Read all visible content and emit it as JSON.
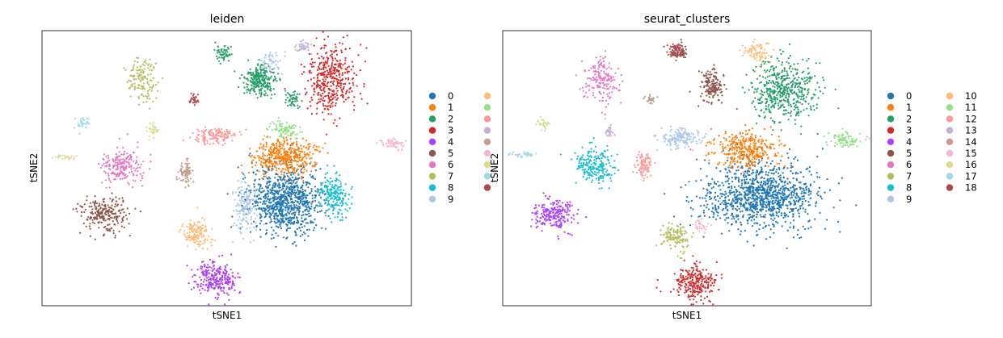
{
  "chart_data": [
    {
      "type": "scatter",
      "title": "leiden",
      "xlabel": "tSNE1",
      "ylabel": "tSNE2",
      "grid": false,
      "legend_position": "right (partially clipped by neighbouring panel)",
      "xticks": [],
      "yticks": [],
      "legend": [
        {
          "label": "0",
          "color": "#1f77b4"
        },
        {
          "label": "1",
          "color": "#ff7f0e"
        },
        {
          "label": "2",
          "color": "#279e68"
        },
        {
          "label": "3",
          "color": "#d62728"
        },
        {
          "label": "4",
          "color": "#aa40fc"
        },
        {
          "label": "5",
          "color": "#8c564b"
        },
        {
          "label": "6",
          "color": "#e377c2"
        },
        {
          "label": "7",
          "color": "#b5bd61"
        },
        {
          "label": "8",
          "color": "#17becf"
        },
        {
          "label": "9",
          "color": "#aec7e8"
        },
        {
          "label": "",
          "color": "#ffbb78"
        },
        {
          "label": "",
          "color": "#98df8a"
        },
        {
          "label": "",
          "color": "#ff9896"
        },
        {
          "label": "",
          "color": "#c5b0d5"
        },
        {
          "label": "",
          "color": "#c49c94"
        },
        {
          "label": "",
          "color": "#f7b6d2"
        },
        {
          "label": "",
          "color": "#dbdb8d"
        },
        {
          "label": "",
          "color": "#9edae5"
        },
        {
          "label": "",
          "color": "#ad494a"
        }
      ],
      "clusters": [
        {
          "color": "#1f77b4",
          "center": [
            0.66,
            0.62
          ],
          "radius": [
            0.09,
            0.11
          ],
          "n": 900
        },
        {
          "color": "#ff7f0e",
          "center": [
            0.66,
            0.46
          ],
          "radius": [
            0.08,
            0.06
          ],
          "n": 450
        },
        {
          "color": "#279e68",
          "center": [
            0.59,
            0.18
          ],
          "radius": [
            0.04,
            0.05
          ],
          "n": 260
        },
        {
          "color": "#279e68",
          "center": [
            0.49,
            0.08
          ],
          "radius": [
            0.02,
            0.025
          ],
          "n": 60
        },
        {
          "color": "#279e68",
          "center": [
            0.68,
            0.25
          ],
          "radius": [
            0.02,
            0.03
          ],
          "n": 50
        },
        {
          "color": "#d62728",
          "center": [
            0.78,
            0.18
          ],
          "radius": [
            0.06,
            0.11
          ],
          "n": 400
        },
        {
          "color": "#aa40fc",
          "center": [
            0.47,
            0.9
          ],
          "radius": [
            0.05,
            0.06
          ],
          "n": 260
        },
        {
          "color": "#8c564b",
          "center": [
            0.17,
            0.67
          ],
          "radius": [
            0.06,
            0.06
          ],
          "n": 230
        },
        {
          "color": "#e377c2",
          "center": [
            0.22,
            0.49
          ],
          "radius": [
            0.05,
            0.06
          ],
          "n": 200
        },
        {
          "color": "#b5bd61",
          "center": [
            0.27,
            0.18
          ],
          "radius": [
            0.035,
            0.07
          ],
          "n": 140
        },
        {
          "color": "#17becf",
          "center": [
            0.79,
            0.6
          ],
          "radius": [
            0.04,
            0.07
          ],
          "n": 200
        },
        {
          "color": "#aec7e8",
          "center": [
            0.55,
            0.64
          ],
          "radius": [
            0.03,
            0.08
          ],
          "n": 150
        },
        {
          "color": "#aec7e8",
          "center": [
            0.62,
            0.11
          ],
          "radius": [
            0.025,
            0.04
          ],
          "n": 50
        },
        {
          "color": "#ffbb78",
          "center": [
            0.42,
            0.74
          ],
          "radius": [
            0.035,
            0.045
          ],
          "n": 150
        },
        {
          "color": "#98df8a",
          "center": [
            0.66,
            0.36
          ],
          "radius": [
            0.04,
            0.025
          ],
          "n": 100
        },
        {
          "color": "#ff9896",
          "center": [
            0.47,
            0.38
          ],
          "radius": [
            0.06,
            0.025
          ],
          "n": 140
        },
        {
          "color": "#c5b0d5",
          "center": [
            0.71,
            0.06
          ],
          "radius": [
            0.02,
            0.02
          ],
          "n": 40
        },
        {
          "color": "#c49c94",
          "center": [
            0.39,
            0.51
          ],
          "radius": [
            0.02,
            0.04
          ],
          "n": 80
        },
        {
          "color": "#f7b6d2",
          "center": [
            0.95,
            0.41
          ],
          "radius": [
            0.03,
            0.02
          ],
          "n": 60
        },
        {
          "color": "#dbdb8d",
          "center": [
            0.3,
            0.36
          ],
          "radius": [
            0.012,
            0.025
          ],
          "n": 30
        },
        {
          "color": "#dbdb8d",
          "center": [
            0.06,
            0.46
          ],
          "radius": [
            0.03,
            0.008
          ],
          "n": 25
        },
        {
          "color": "#9edae5",
          "center": [
            0.11,
            0.34
          ],
          "radius": [
            0.02,
            0.025
          ],
          "n": 30
        },
        {
          "color": "#ad494a",
          "center": [
            0.41,
            0.25
          ],
          "radius": [
            0.012,
            0.015
          ],
          "n": 30
        }
      ]
    },
    {
      "type": "scatter",
      "title": "seurat_clusters",
      "xlabel": "tSNE1",
      "ylabel": "tSNE2",
      "grid": false,
      "legend_position": "right, two columns",
      "xticks": [],
      "yticks": [],
      "legend": [
        {
          "label": "0",
          "color": "#1f77b4"
        },
        {
          "label": "1",
          "color": "#ff7f0e"
        },
        {
          "label": "2",
          "color": "#279e68"
        },
        {
          "label": "3",
          "color": "#d62728"
        },
        {
          "label": "4",
          "color": "#aa40fc"
        },
        {
          "label": "5",
          "color": "#8c564b"
        },
        {
          "label": "6",
          "color": "#e377c2"
        },
        {
          "label": "7",
          "color": "#b5bd61"
        },
        {
          "label": "8",
          "color": "#17becf"
        },
        {
          "label": "9",
          "color": "#aec7e8"
        },
        {
          "label": "10",
          "color": "#ffbb78"
        },
        {
          "label": "11",
          "color": "#98df8a"
        },
        {
          "label": "12",
          "color": "#ff9896"
        },
        {
          "label": "13",
          "color": "#c5b0d5"
        },
        {
          "label": "14",
          "color": "#c49c94"
        },
        {
          "label": "15",
          "color": "#f7b6d2"
        },
        {
          "label": "16",
          "color": "#dbdb8d"
        },
        {
          "label": "17",
          "color": "#9edae5"
        },
        {
          "label": "18",
          "color": "#ad494a"
        }
      ],
      "clusters": [
        {
          "color": "#1f77b4",
          "center": [
            0.7,
            0.6
          ],
          "radius": [
            0.14,
            0.11
          ],
          "n": 1100
        },
        {
          "color": "#ff7f0e",
          "center": [
            0.66,
            0.43
          ],
          "radius": [
            0.08,
            0.06
          ],
          "n": 350
        },
        {
          "color": "#279e68",
          "center": [
            0.76,
            0.22
          ],
          "radius": [
            0.08,
            0.1
          ],
          "n": 500
        },
        {
          "color": "#d62728",
          "center": [
            0.52,
            0.92
          ],
          "radius": [
            0.05,
            0.06
          ],
          "n": 250
        },
        {
          "color": "#aa40fc",
          "center": [
            0.14,
            0.67
          ],
          "radius": [
            0.05,
            0.05
          ],
          "n": 220
        },
        {
          "color": "#8c564b",
          "center": [
            0.57,
            0.2
          ],
          "radius": [
            0.03,
            0.05
          ],
          "n": 150
        },
        {
          "color": "#8c564b",
          "center": [
            0.48,
            0.08
          ],
          "radius": [
            0.02,
            0.025
          ],
          "n": 50
        },
        {
          "color": "#e377c2",
          "center": [
            0.27,
            0.18
          ],
          "radius": [
            0.04,
            0.07
          ],
          "n": 170
        },
        {
          "color": "#b5bd61",
          "center": [
            0.47,
            0.75
          ],
          "radius": [
            0.035,
            0.045
          ],
          "n": 130
        },
        {
          "color": "#17becf",
          "center": [
            0.25,
            0.49
          ],
          "radius": [
            0.05,
            0.06
          ],
          "n": 220
        },
        {
          "color": "#aec7e8",
          "center": [
            0.48,
            0.39
          ],
          "radius": [
            0.05,
            0.035
          ],
          "n": 150
        },
        {
          "color": "#ffbb78",
          "center": [
            0.69,
            0.08
          ],
          "radius": [
            0.035,
            0.03
          ],
          "n": 80
        },
        {
          "color": "#98df8a",
          "center": [
            0.93,
            0.4
          ],
          "radius": [
            0.04,
            0.025
          ],
          "n": 90
        },
        {
          "color": "#ff9896",
          "center": [
            0.38,
            0.49
          ],
          "radius": [
            0.02,
            0.04
          ],
          "n": 90
        },
        {
          "color": "#c5b0d5",
          "center": [
            0.29,
            0.36
          ],
          "radius": [
            0.012,
            0.025
          ],
          "n": 30
        },
        {
          "color": "#c49c94",
          "center": [
            0.4,
            0.25
          ],
          "radius": [
            0.012,
            0.015
          ],
          "n": 30
        },
        {
          "color": "#f7b6d2",
          "center": [
            0.54,
            0.71
          ],
          "radius": [
            0.02,
            0.02
          ],
          "n": 30
        },
        {
          "color": "#dbdb8d",
          "center": [
            0.11,
            0.34
          ],
          "radius": [
            0.02,
            0.025
          ],
          "n": 30
        },
        {
          "color": "#9edae5",
          "center": [
            0.06,
            0.45
          ],
          "radius": [
            0.03,
            0.01
          ],
          "n": 30
        },
        {
          "color": "#ad494a",
          "center": [
            0.47,
            0.07
          ],
          "radius": [
            0.02,
            0.025
          ],
          "n": 60
        }
      ]
    }
  ]
}
